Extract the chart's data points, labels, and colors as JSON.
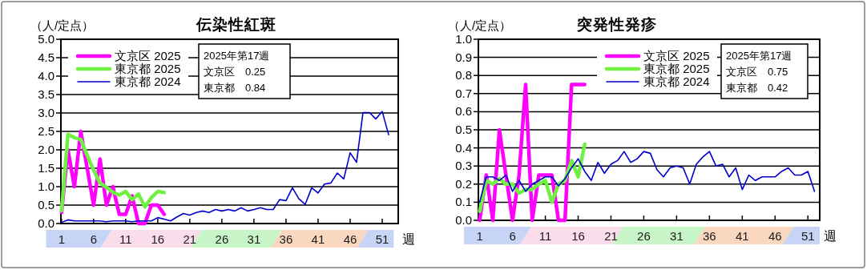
{
  "chart_data": [
    {
      "type": "line",
      "title": "伝染性紅斑",
      "ylabel": "（人/定点）",
      "xlabel": "週",
      "xlim": [
        0.9,
        53.5
      ],
      "ylim": [
        0,
        5
      ],
      "xticks": [
        1,
        6,
        11,
        16,
        21,
        26,
        31,
        36,
        41,
        46,
        51
      ],
      "yticks": [
        {
          "value": 0,
          "label": "0.0"
        },
        {
          "value": 0.5,
          "label": "0.5"
        },
        {
          "value": 1,
          "label": "1.0"
        },
        {
          "value": 1.5,
          "label": "1.5"
        },
        {
          "value": 2,
          "label": "2.0"
        },
        {
          "value": 2.5,
          "label": "2.5"
        },
        {
          "value": 3,
          "label": "3.0"
        },
        {
          "value": 3.5,
          "label": "3.5"
        },
        {
          "value": 4,
          "label": "4.0"
        },
        {
          "value": 4.5,
          "label": "4.5"
        },
        {
          "value": 5,
          "label": "5.0"
        }
      ],
      "grid": "y",
      "legend": "top left",
      "annotations": [
        "2025年第17週",
        "文京区　0.25",
        "東京都　0.84"
      ],
      "series": [
        {
          "name": "文京区 2025",
          "color": "#ff00ff",
          "x": [
            1,
            2,
            3,
            4,
            5,
            6,
            7,
            8,
            9,
            10,
            11,
            12,
            13,
            14,
            15,
            16,
            17
          ],
          "values": [
            0.3,
            2.0,
            1.0,
            2.5,
            1.5,
            0.5,
            1.75,
            0.5,
            1.0,
            0.25,
            0.25,
            0.75,
            0,
            0,
            0.5,
            0.5,
            0.25
          ]
        },
        {
          "name": "東京都 2025",
          "color": "#70f040",
          "x": [
            1,
            2,
            3,
            4,
            5,
            6,
            7,
            8,
            9,
            10,
            11,
            12,
            13,
            14,
            15,
            16,
            17
          ],
          "values": [
            0.35,
            2.42,
            2.33,
            2.28,
            1.85,
            1.45,
            1.1,
            0.98,
            0.85,
            0.77,
            0.87,
            0.65,
            0.8,
            0.45,
            0.7,
            0.87,
            0.84
          ]
        },
        {
          "name": "東京都 2024",
          "color": "#0000cc",
          "x": [
            1,
            2,
            3,
            4,
            5,
            6,
            7,
            8,
            9,
            10,
            11,
            12,
            13,
            14,
            15,
            16,
            17,
            18,
            19,
            20,
            21,
            22,
            23,
            24,
            25,
            26,
            27,
            28,
            29,
            30,
            31,
            32,
            33,
            34,
            35,
            36,
            37,
            38,
            39,
            40,
            41,
            42,
            43,
            44,
            45,
            46,
            47,
            48,
            49,
            50,
            51,
            52
          ],
          "values": [
            0.03,
            0.1,
            0.07,
            0.07,
            0.07,
            0.07,
            0.07,
            0.05,
            0.07,
            0.07,
            0.07,
            0.05,
            0.07,
            0.07,
            0.07,
            0.16,
            0.12,
            0.07,
            0.18,
            0.27,
            0.23,
            0.3,
            0.34,
            0.3,
            0.38,
            0.34,
            0.38,
            0.34,
            0.43,
            0.34,
            0.38,
            0.43,
            0.38,
            0.38,
            0.65,
            0.62,
            0.97,
            0.67,
            0.52,
            0.97,
            0.83,
            1.07,
            1.1,
            1.37,
            1.21,
            1.92,
            1.66,
            3.01,
            3.01,
            2.84,
            3.04,
            2.41
          ]
        }
      ]
    },
    {
      "type": "line",
      "title": "突発性発疹",
      "ylabel": "（人/定点）",
      "xlabel": "週",
      "xlim": [
        0.8,
        52.8
      ],
      "ylim": [
        0,
        1
      ],
      "xticks": [
        1,
        6,
        11,
        16,
        21,
        26,
        31,
        36,
        41,
        46,
        51
      ],
      "yticks": [
        {
          "value": 0,
          "label": "0.0"
        },
        0.1,
        0.2,
        0.3,
        0.4,
        0.5,
        0.6,
        0.7,
        0.8,
        0.9,
        {
          "value": 1,
          "label": "1.0"
        }
      ],
      "grid": "y",
      "legend": "top",
      "annotations": [
        "2025年第17週",
        "文京区　0.75",
        "東京都　0.42"
      ],
      "series": [
        {
          "name": "文京区 2025",
          "color": "#ff00ff",
          "x": [
            1,
            2,
            3,
            4,
            5,
            6,
            7,
            8,
            9,
            10,
            11,
            12,
            13,
            14,
            15,
            16,
            17
          ],
          "values": [
            0,
            0.25,
            0,
            0.5,
            0.25,
            0,
            0.25,
            0.75,
            0,
            0.25,
            0.25,
            0.25,
            0,
            0,
            0.75,
            0.75,
            0.75
          ]
        },
        {
          "name": "東京都 2025",
          "color": "#70f040",
          "x": [
            1,
            2,
            3,
            4,
            5,
            6,
            7,
            8,
            9,
            10,
            11,
            12,
            13,
            14,
            15,
            16,
            17
          ],
          "values": [
            0.05,
            0.22,
            0.2,
            0.23,
            0.2,
            0.2,
            0.15,
            0.17,
            0.17,
            0.2,
            0.22,
            0.1,
            0.2,
            0.22,
            0.33,
            0.24,
            0.42
          ]
        },
        {
          "name": "東京都 2024",
          "color": "#0000cc",
          "x": [
            1,
            2,
            3,
            4,
            5,
            6,
            7,
            8,
            9,
            10,
            11,
            12,
            13,
            14,
            15,
            16,
            17,
            18,
            19,
            20,
            21,
            22,
            23,
            24,
            25,
            26,
            27,
            28,
            29,
            30,
            31,
            32,
            33,
            34,
            35,
            36,
            37,
            38,
            39,
            40,
            41,
            42,
            43,
            44,
            45,
            46,
            47,
            48,
            49,
            50,
            51,
            52
          ],
          "values": [
            0.1,
            0.24,
            0.24,
            0.22,
            0.25,
            0.16,
            0.22,
            0.16,
            0.2,
            0.22,
            0.24,
            0.24,
            0.19,
            0.23,
            0.29,
            0.34,
            0.27,
            0.22,
            0.32,
            0.26,
            0.31,
            0.33,
            0.38,
            0.32,
            0.34,
            0.38,
            0.37,
            0.28,
            0.24,
            0.29,
            0.3,
            0.29,
            0.2,
            0.31,
            0.35,
            0.38,
            0.3,
            0.31,
            0.24,
            0.29,
            0.17,
            0.25,
            0.22,
            0.24,
            0.24,
            0.24,
            0.27,
            0.29,
            0.25,
            0.25,
            0.27,
            0.16
          ]
        }
      ]
    }
  ]
}
